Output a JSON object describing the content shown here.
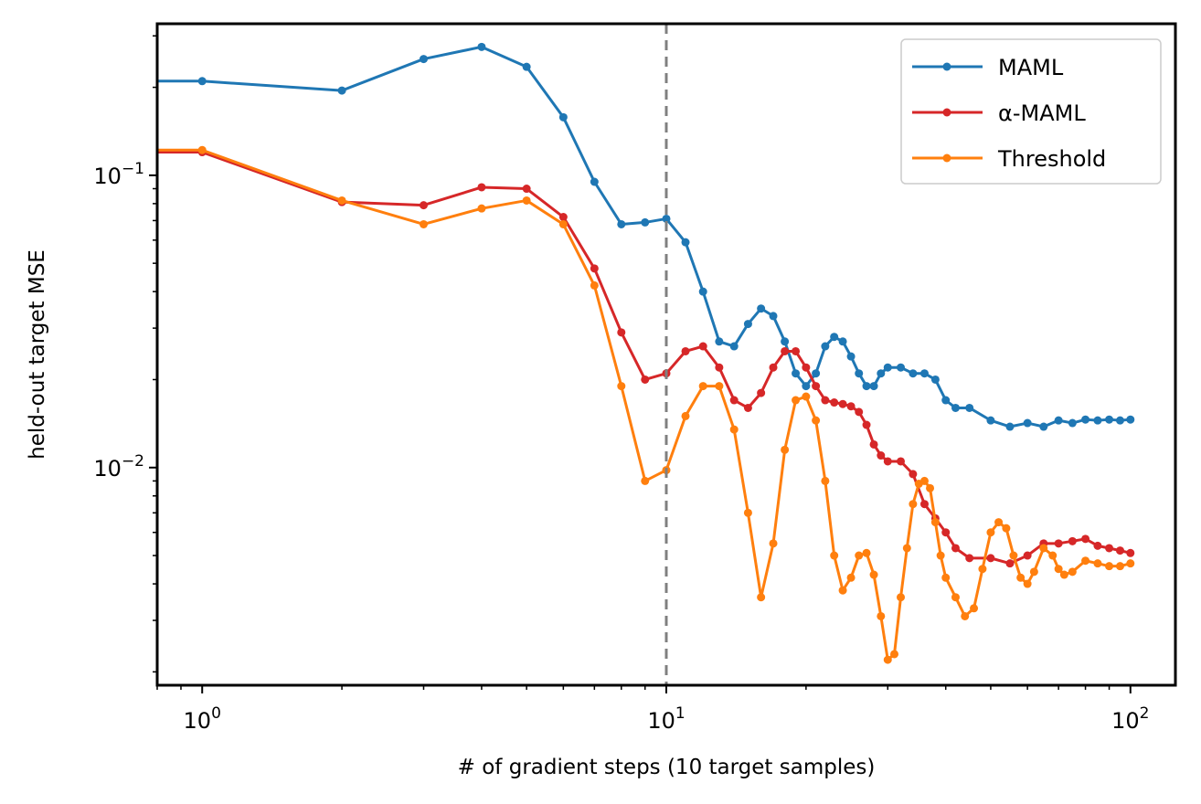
{
  "chart_data": {
    "type": "line",
    "xlabel": "# of gradient steps (10 target samples)",
    "ylabel": "held-out target MSE",
    "xscale": "log",
    "yscale": "log",
    "xlim": [
      0.8,
      125
    ],
    "ylim": [
      0.0018,
      0.33
    ],
    "grid": false,
    "legend_position": "top-right",
    "reference_line": {
      "axis": "x",
      "value": 10,
      "style": "dashed",
      "color": "#808080"
    },
    "x_ticks": [
      {
        "value": 1,
        "base": "10",
        "exp": "0"
      },
      {
        "value": 10,
        "base": "10",
        "exp": "1"
      },
      {
        "value": 100,
        "base": "10",
        "exp": "2"
      }
    ],
    "y_ticks": [
      {
        "value": 0.1,
        "base": "10",
        "exp": "−1"
      },
      {
        "value": 0.01,
        "base": "10",
        "exp": "−2"
      }
    ],
    "series": [
      {
        "name": "MAML",
        "color": "#1f77b4",
        "x": [
          0,
          1,
          2,
          3,
          4,
          5,
          6,
          7,
          8,
          9,
          10,
          11,
          12,
          13,
          14,
          15,
          16,
          17,
          18,
          19,
          20,
          21,
          22,
          23,
          24,
          25,
          26,
          27,
          28,
          29,
          30,
          32,
          34,
          36,
          38,
          40,
          42,
          45,
          50,
          55,
          60,
          65,
          70,
          75,
          80,
          85,
          90,
          95,
          100
        ],
        "y": [
          0.21,
          0.21,
          0.195,
          0.25,
          0.275,
          0.235,
          0.158,
          0.095,
          0.068,
          0.069,
          0.071,
          0.059,
          0.04,
          0.027,
          0.026,
          0.031,
          0.035,
          0.033,
          0.027,
          0.021,
          0.019,
          0.021,
          0.026,
          0.028,
          0.027,
          0.024,
          0.021,
          0.019,
          0.019,
          0.021,
          0.022,
          0.022,
          0.021,
          0.021,
          0.02,
          0.017,
          0.016,
          0.016,
          0.0145,
          0.0138,
          0.0142,
          0.0138,
          0.0145,
          0.0142,
          0.0146,
          0.0145,
          0.0146,
          0.0145,
          0.0146
        ]
      },
      {
        "name": "α-MAML",
        "color": "#d62728",
        "x": [
          0,
          1,
          2,
          3,
          4,
          5,
          6,
          7,
          8,
          9,
          10,
          11,
          12,
          13,
          14,
          15,
          16,
          17,
          18,
          19,
          20,
          21,
          22,
          23,
          24,
          25,
          26,
          27,
          28,
          29,
          30,
          32,
          34,
          36,
          38,
          40,
          42,
          45,
          50,
          55,
          60,
          65,
          70,
          75,
          80,
          85,
          90,
          95,
          100
        ],
        "y": [
          0.12,
          0.12,
          0.081,
          0.079,
          0.091,
          0.09,
          0.072,
          0.048,
          0.029,
          0.02,
          0.021,
          0.025,
          0.026,
          0.022,
          0.017,
          0.016,
          0.018,
          0.022,
          0.025,
          0.025,
          0.022,
          0.019,
          0.017,
          0.0167,
          0.0165,
          0.0162,
          0.0155,
          0.014,
          0.012,
          0.011,
          0.0105,
          0.0105,
          0.0095,
          0.0075,
          0.0067,
          0.006,
          0.0053,
          0.0049,
          0.0049,
          0.0047,
          0.005,
          0.0055,
          0.0055,
          0.0056,
          0.0057,
          0.0054,
          0.0053,
          0.0052,
          0.0051
        ]
      },
      {
        "name": "Threshold",
        "color": "#ff7f0e",
        "x": [
          0,
          1,
          2,
          3,
          4,
          5,
          6,
          7,
          8,
          9,
          10,
          11,
          12,
          13,
          14,
          15,
          16,
          17,
          18,
          19,
          20,
          21,
          22,
          23,
          24,
          25,
          26,
          27,
          28,
          29,
          30,
          31,
          32,
          33,
          34,
          35,
          36,
          37,
          38,
          39,
          40,
          42,
          44,
          46,
          48,
          50,
          52,
          54,
          56,
          58,
          60,
          62,
          65,
          68,
          70,
          72,
          75,
          80,
          85,
          90,
          95,
          100
        ],
        "y": [
          0.122,
          0.122,
          0.082,
          0.068,
          0.077,
          0.082,
          0.068,
          0.042,
          0.019,
          0.009,
          0.0098,
          0.015,
          0.019,
          0.019,
          0.0135,
          0.007,
          0.0036,
          0.0055,
          0.0115,
          0.017,
          0.0175,
          0.0145,
          0.009,
          0.005,
          0.0038,
          0.0042,
          0.005,
          0.0051,
          0.0043,
          0.0031,
          0.0022,
          0.0023,
          0.0036,
          0.0053,
          0.0075,
          0.0088,
          0.009,
          0.0085,
          0.0065,
          0.005,
          0.0042,
          0.0036,
          0.0031,
          0.0033,
          0.0045,
          0.006,
          0.0065,
          0.0062,
          0.005,
          0.0042,
          0.004,
          0.0044,
          0.0053,
          0.005,
          0.0045,
          0.0043,
          0.0044,
          0.0048,
          0.0047,
          0.0046,
          0.0046,
          0.0047
        ]
      }
    ]
  }
}
